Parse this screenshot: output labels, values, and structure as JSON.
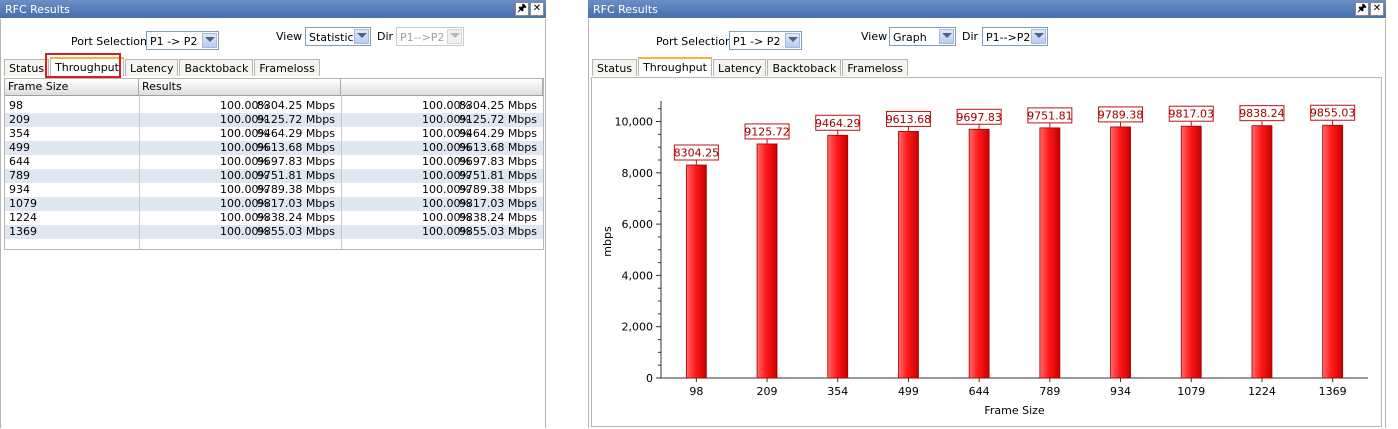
{
  "left_panel": {
    "title": "RFC Results",
    "port_selection_label": "Port Selection",
    "port_selection_value": "P1 -> P2",
    "view_label": "View",
    "view_value": "Statistics",
    "dir_label": "Dir",
    "dir_value": "P1-->P2",
    "tabs": [
      "Status",
      "Throughput",
      "Latency",
      "Backtoback",
      "Frameloss"
    ],
    "active_tab": "Throughput",
    "columns": [
      "Frame Size",
      "Results",
      ""
    ],
    "rows": [
      {
        "frame": "98",
        "pct1": "100.00%",
        "rate1": "8304.25 Mbps",
        "pct2": "100.00%",
        "rate2": "8304.25 Mbps"
      },
      {
        "frame": "209",
        "pct1": "100.00%",
        "rate1": "9125.72 Mbps",
        "pct2": "100.00%",
        "rate2": "9125.72 Mbps"
      },
      {
        "frame": "354",
        "pct1": "100.00%",
        "rate1": "9464.29 Mbps",
        "pct2": "100.00%",
        "rate2": "9464.29 Mbps"
      },
      {
        "frame": "499",
        "pct1": "100.00%",
        "rate1": "9613.68 Mbps",
        "pct2": "100.00%",
        "rate2": "9613.68 Mbps"
      },
      {
        "frame": "644",
        "pct1": "100.00%",
        "rate1": "9697.83 Mbps",
        "pct2": "100.00%",
        "rate2": "9697.83 Mbps"
      },
      {
        "frame": "789",
        "pct1": "100.00%",
        "rate1": "9751.81 Mbps",
        "pct2": "100.00%",
        "rate2": "9751.81 Mbps"
      },
      {
        "frame": "934",
        "pct1": "100.00%",
        "rate1": "9789.38 Mbps",
        "pct2": "100.00%",
        "rate2": "9789.38 Mbps"
      },
      {
        "frame": "1079",
        "pct1": "100.00%",
        "rate1": "9817.03 Mbps",
        "pct2": "100.00%",
        "rate2": "9817.03 Mbps"
      },
      {
        "frame": "1224",
        "pct1": "100.00%",
        "rate1": "9838.24 Mbps",
        "pct2": "100.00%",
        "rate2": "9838.24 Mbps"
      },
      {
        "frame": "1369",
        "pct1": "100.00%",
        "rate1": "9855.03 Mbps",
        "pct2": "100.00%",
        "rate2": "9855.03 Mbps"
      }
    ]
  },
  "right_panel": {
    "title": "RFC Results",
    "port_selection_label": "Port Selection",
    "port_selection_value": "P1 -> P2",
    "view_label": "View",
    "view_value": "Graph",
    "dir_label": "Dir",
    "dir_value": "P1-->P2",
    "tabs": [
      "Status",
      "Throughput",
      "Latency",
      "Backtoback",
      "Frameloss"
    ],
    "active_tab": "Throughput"
  },
  "chart_data": {
    "type": "bar",
    "categories": [
      "98",
      "209",
      "354",
      "499",
      "644",
      "789",
      "934",
      "1079",
      "1224",
      "1369"
    ],
    "values": [
      8304.25,
      9125.72,
      9464.29,
      9613.68,
      9697.83,
      9751.81,
      9789.38,
      9817.03,
      9838.24,
      9855.03
    ],
    "data_labels": [
      "8304.25",
      "9125.72",
      "9464.29",
      "9613.68",
      "9697.83",
      "9751.81",
      "9789.38",
      "9817.03",
      "9838.24",
      "9855.03"
    ],
    "xlabel": "Frame Size",
    "ylabel": "mbps",
    "ylim": [
      0,
      10800
    ],
    "yticks": [
      0,
      2000,
      4000,
      6000,
      8000,
      10000
    ],
    "ytick_labels": [
      "0",
      "2,000",
      "4,000",
      "6,000",
      "8,000",
      "10,000"
    ],
    "bar_color": "#ff1a1a",
    "label_border_color": "#c01010",
    "grid": false
  },
  "colors": {
    "titlebar": "#5a7fbd",
    "highlight_box": "#d81d24",
    "row_alt": "#dfe7f3",
    "active_tab_accent": "#f2b340"
  }
}
